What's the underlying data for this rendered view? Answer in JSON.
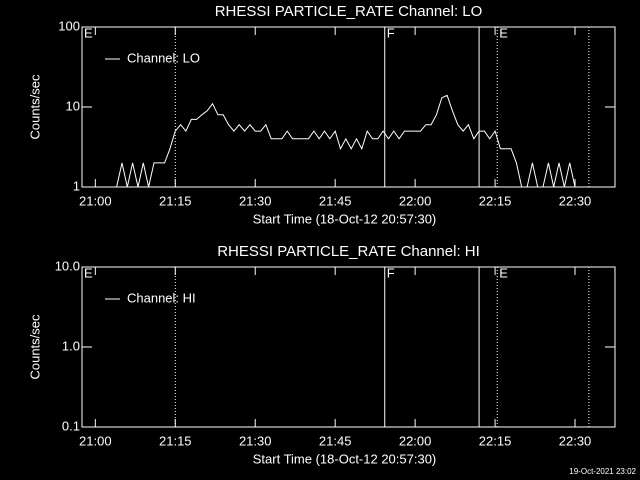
{
  "chart_data": [
    {
      "type": "line",
      "title": "RHESSI PARTICLE_RATE Channel: LO",
      "xlabel": "Start Time (18-Oct-12 20:57:30)",
      "ylabel": "Counts/sec",
      "log_y": true,
      "legend": "upper left",
      "xlim": [
        "20:57:30",
        "22:37:30"
      ],
      "xticks": [
        "21:00",
        "21:15",
        "21:30",
        "21:45",
        "22:00",
        "22:15",
        "22:30"
      ],
      "ylim": [
        1,
        100
      ],
      "yticks": [
        1,
        10,
        100
      ],
      "markers": [
        {
          "x": "20:57:30",
          "label": "E",
          "line": "dotted"
        },
        {
          "x": "21:15:00",
          "line": "dotted"
        },
        {
          "x": "21:54:18",
          "label": "F",
          "line": "solid"
        },
        {
          "x": "22:12:00",
          "line": "solid"
        },
        {
          "x": "22:15:24",
          "label": "E",
          "line": "dotted"
        },
        {
          "x": "22:32:36",
          "line": "dotted"
        }
      ],
      "series": [
        {
          "name": "Channel: LO",
          "color": "#ffffff",
          "x": [
            "20:58",
            "20:59",
            "21:00",
            "21:01",
            "21:02",
            "21:03",
            "21:04",
            "21:05",
            "21:06",
            "21:07",
            "21:08",
            "21:09",
            "21:10",
            "21:11",
            "21:12",
            "21:13",
            "21:14",
            "21:15",
            "21:16",
            "21:17",
            "21:18",
            "21:19",
            "21:20",
            "21:21",
            "21:22",
            "21:23",
            "21:24",
            "21:25",
            "21:26",
            "21:27",
            "21:28",
            "21:29",
            "21:30",
            "21:31",
            "21:32",
            "21:33",
            "21:34",
            "21:35",
            "21:36",
            "21:37",
            "21:38",
            "21:39",
            "21:40",
            "21:41",
            "21:42",
            "21:43",
            "21:44",
            "21:45",
            "21:46",
            "21:47",
            "21:48",
            "21:49",
            "21:50",
            "21:51",
            "21:52",
            "21:53",
            "21:54",
            "21:55",
            "21:56",
            "21:57",
            "21:58",
            "21:59",
            "22:00",
            "22:01",
            "22:02",
            "22:03",
            "22:04",
            "22:05",
            "22:06",
            "22:07",
            "22:08",
            "22:09",
            "22:10",
            "22:11",
            "22:12",
            "22:13",
            "22:14",
            "22:15",
            "22:16",
            "22:17",
            "22:18",
            "22:19",
            "22:20",
            "22:21",
            "22:22",
            "22:23",
            "22:24",
            "22:25",
            "22:26",
            "22:27",
            "22:28",
            "22:29",
            "22:30",
            "22:31"
          ],
          "values": [
            1,
            1,
            1,
            1,
            1,
            1,
            1,
            2,
            1,
            2,
            1,
            2,
            1,
            2,
            2,
            2,
            3,
            5,
            6,
            5,
            7,
            7,
            8,
            9,
            11,
            8,
            8,
            6,
            5,
            6,
            5,
            6,
            5,
            5,
            6,
            4,
            4,
            4,
            5,
            4,
            4,
            4,
            4,
            5,
            4,
            5,
            4,
            5,
            3,
            4,
            3,
            4,
            3,
            5,
            4,
            4,
            5,
            4,
            5,
            4,
            5,
            5,
            5,
            5,
            6,
            6,
            8,
            13,
            14,
            9,
            6,
            5,
            6,
            4,
            5,
            5,
            4,
            5,
            3,
            3,
            3,
            2,
            1,
            1,
            2,
            1,
            1,
            2,
            1,
            2,
            1,
            2,
            1,
            1
          ]
        }
      ]
    },
    {
      "type": "line",
      "title": "RHESSI PARTICLE_RATE Channel: HI",
      "xlabel": "Start Time (18-Oct-12 20:57:30)",
      "ylabel": "Counts/sec",
      "log_y": true,
      "legend": "upper left",
      "xlim": [
        "20:57:30",
        "22:37:30"
      ],
      "xticks": [
        "21:00",
        "21:15",
        "21:30",
        "21:45",
        "22:00",
        "22:15",
        "22:30"
      ],
      "ylim": [
        0.1,
        10
      ],
      "yticks": [
        0.1,
        {
          "value": 1,
          "label": "1.0"
        },
        {
          "value": 10,
          "label": "10.0"
        }
      ],
      "markers": [
        {
          "x": "20:57:30",
          "label": "E",
          "line": "dotted"
        },
        {
          "x": "21:15:00",
          "line": "dotted"
        },
        {
          "x": "21:54:18",
          "label": "F",
          "line": "solid"
        },
        {
          "x": "22:12:00",
          "line": "solid"
        },
        {
          "x": "22:15:24",
          "label": "E",
          "line": "dotted"
        },
        {
          "x": "22:32:36",
          "line": "dotted"
        }
      ],
      "series": [
        {
          "name": "Channel: HI",
          "color": "#ffffff",
          "x": [],
          "values": []
        }
      ]
    }
  ],
  "footer": "19-Oct-2021 23:02"
}
